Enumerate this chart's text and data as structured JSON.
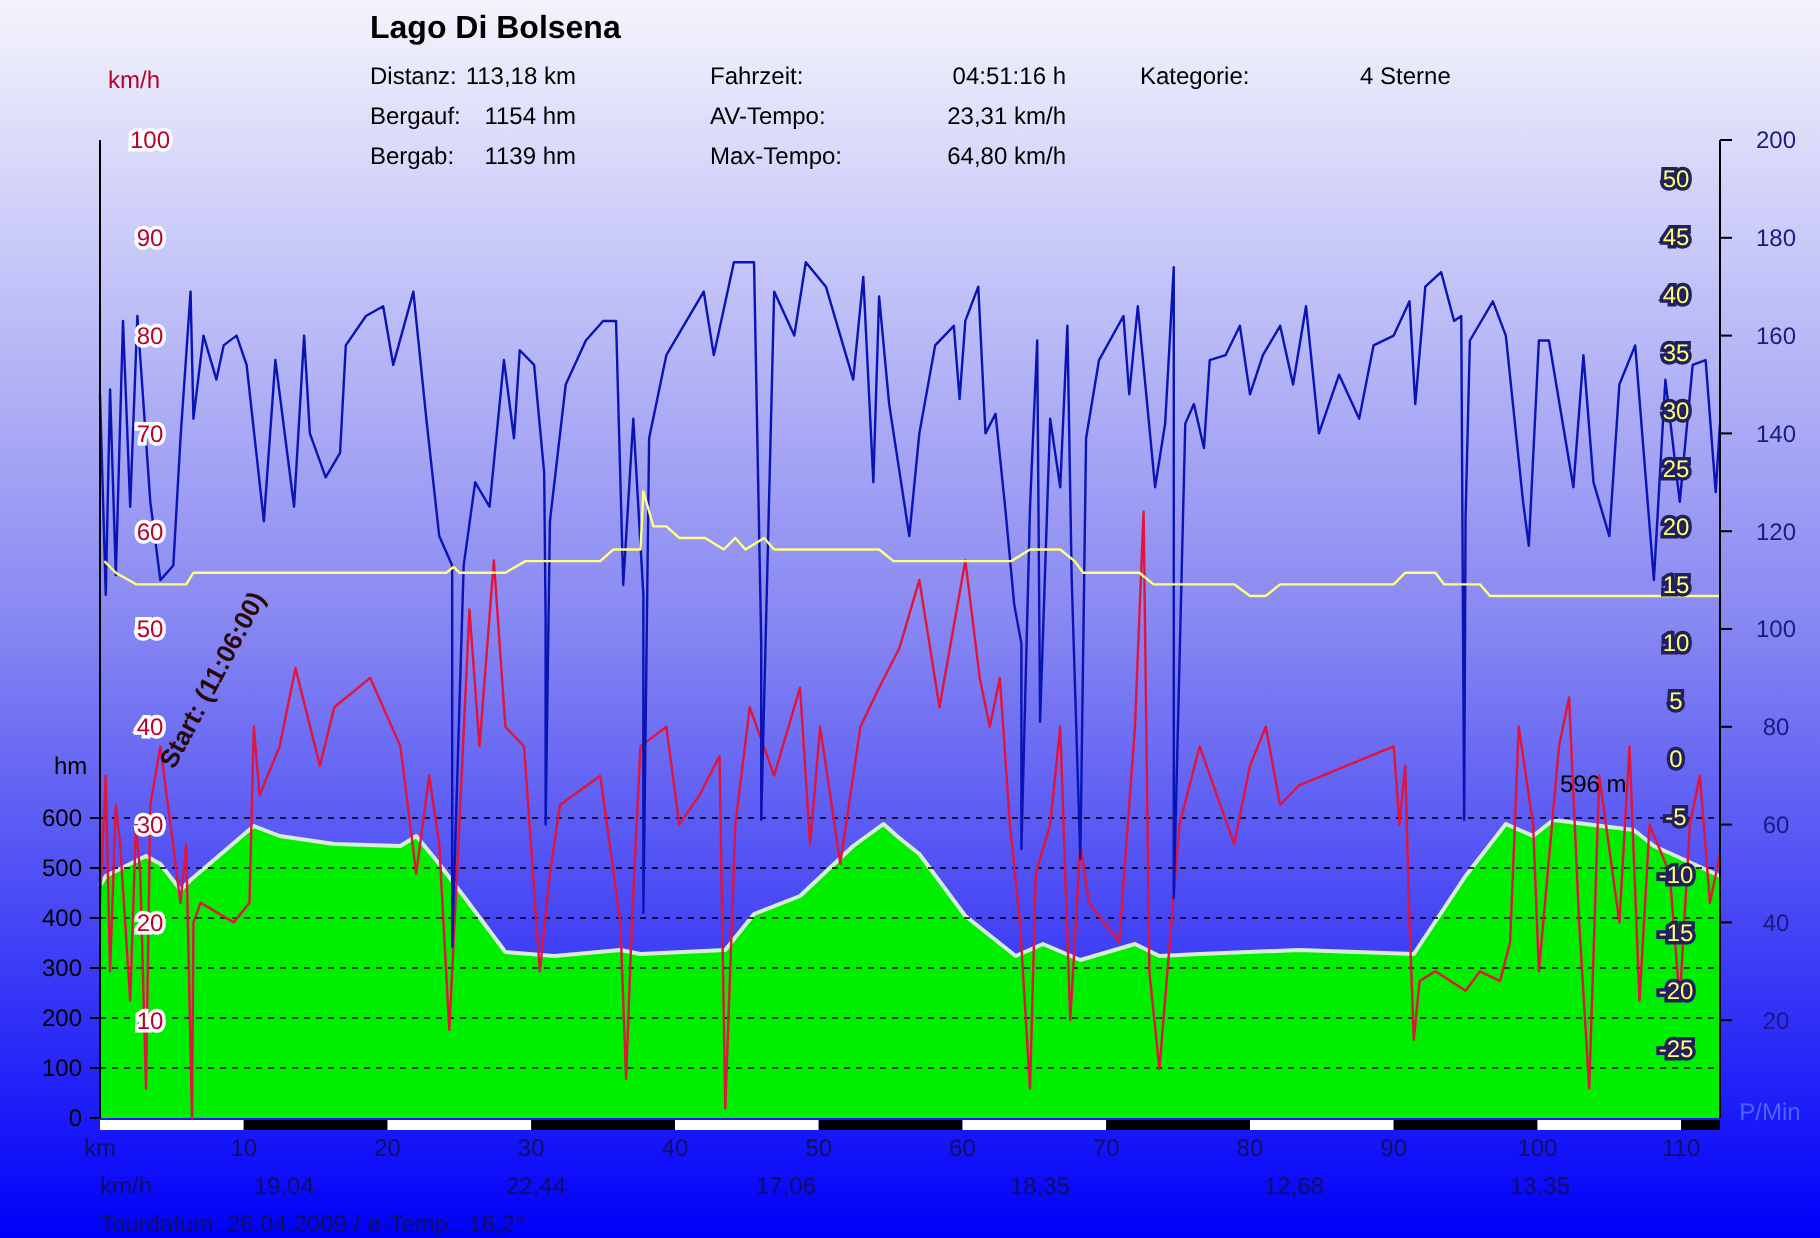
{
  "chart_data": [
    {
      "type": "line",
      "title": "Lago Di Bolsena",
      "xlim": [
        0,
        112.7
      ],
      "xticks": [
        {
          "value": 0,
          "label": "km"
        },
        10,
        20,
        30,
        40,
        50,
        60,
        70,
        80,
        90,
        100,
        110
      ],
      "ylabel": "hm",
      "ylim": [
        0,
        1956
      ],
      "yticks": [
        0,
        100,
        200,
        300,
        400,
        500,
        600
      ],
      "y2label": "km/h",
      "y2lim": [
        0,
        100
      ],
      "y2ticks": [
        10,
        20,
        30,
        40,
        50,
        60,
        70,
        80,
        90,
        100
      ],
      "y3label": "P/Min",
      "y3lim": [
        0,
        200
      ],
      "y3ticks": [
        20,
        40,
        60,
        80,
        100,
        120,
        140,
        160,
        180,
        200
      ],
      "grid": "y",
      "line_style": "solid",
      "series": [
        {
          "type": "area",
          "color": "#00ee00",
          "x": [
            0,
            0.4,
            3.2,
            4.2,
            5.6,
            6.3,
            10.7,
            12.5,
            16.3,
            20.9,
            22.0,
            23.6,
            25.5,
            28.2,
            31.6,
            36.2,
            37.6,
            43.5,
            45.5,
            48.7,
            52.4,
            54.5,
            55.6,
            57.0,
            60.2,
            63.7,
            65.6,
            68.2,
            72.0,
            73.7,
            76.5,
            83.4,
            91.4,
            95.0,
            97.8,
            99.7,
            101.1,
            106.7,
            108.1,
            112.7
          ],
          "values": [
            464,
            484,
            524,
            508,
            456,
            476,
            584,
            564,
            548,
            544,
            564,
            508,
            436,
            332,
            324,
            336,
            328,
            336,
            408,
            444,
            544,
            588,
            560,
            528,
            404,
            324,
            348,
            316,
            348,
            324,
            328,
            336,
            328,
            484,
            588,
            564,
            596,
            576,
            544,
            484
          ]
        },
        {
          "axis": "y2",
          "color": "#e0143c",
          "x": [
            0,
            0.4,
            0.7,
            1.1,
            1.4,
            2.1,
            2.5,
            2.8,
            3.2,
            3.5,
            4.2,
            5.6,
            6.0,
            6.4,
            6.5,
            7.0,
            9.3,
            10.4,
            10.7,
            11.1,
            12.5,
            13.6,
            15.3,
            16.3,
            18.8,
            20.9,
            22.0,
            22.9,
            23.6,
            24.3,
            25.0,
            25.7,
            26.4,
            27.4,
            28.2,
            29.5,
            30.6,
            31.3,
            32.0,
            34.8,
            36.2,
            36.6,
            37.0,
            37.6,
            39.4,
            40.3,
            41.7,
            43.1,
            43.5,
            44.2,
            45.2,
            46.9,
            48.7,
            49.4,
            50.1,
            51.5,
            52.9,
            54.2,
            55.6,
            57.0,
            58.4,
            60.2,
            61.2,
            61.9,
            62.6,
            63.3,
            64.0,
            64.7,
            65.1,
            66.1,
            66.8,
            67.5,
            68.2,
            68.8,
            70.9,
            72.0,
            72.6,
            73.0,
            73.7,
            75.1,
            76.5,
            78.9,
            80.0,
            81.1,
            82.1,
            83.4,
            90.0,
            90.4,
            90.8,
            91.1,
            91.4,
            91.8,
            92.9,
            95.0,
            96.0,
            97.4,
            98.1,
            98.7,
            99.7,
            100.1,
            101.5,
            102.2,
            102.9,
            103.6,
            104.3,
            105.7,
            106.4,
            107.1,
            107.8,
            109.2,
            109.9,
            110.6,
            111.3,
            112.0,
            112.7
          ],
          "values": [
            22,
            35,
            15,
            32,
            28,
            12,
            30,
            25,
            3,
            32,
            38,
            22,
            28,
            0,
            20,
            22,
            20,
            22,
            40,
            33,
            38,
            46,
            36,
            42,
            45,
            38,
            25,
            35,
            28,
            9,
            30,
            52,
            38,
            57,
            40,
            38,
            15,
            25,
            32,
            35,
            20,
            4,
            20,
            38,
            40,
            30,
            33,
            37,
            1,
            30,
            42,
            35,
            44,
            28,
            40,
            26,
            40,
            44,
            48,
            55,
            42,
            57,
            45,
            40,
            45,
            30,
            20,
            3,
            25,
            30,
            40,
            10,
            28,
            22,
            18,
            40,
            62,
            15,
            5,
            30,
            38,
            28,
            36,
            40,
            32,
            34,
            38,
            30,
            36,
            20,
            8,
            14,
            15,
            13,
            15,
            14,
            18,
            40,
            30,
            15,
            38,
            43,
            20,
            3,
            35,
            20,
            38,
            12,
            30,
            25,
            12,
            30,
            35,
            22,
            27
          ]
        },
        {
          "axis": "y3",
          "color": "#0a14b4",
          "x": [
            0,
            0.4,
            0.7,
            1.1,
            1.6,
            2.1,
            2.6,
            3.5,
            4.2,
            5.1,
            5.6,
            6.3,
            6.5,
            7.2,
            8.1,
            8.6,
            9.5,
            10.2,
            11.4,
            12.2,
            13.5,
            14.2,
            14.6,
            15.7,
            16.7,
            17.1,
            18.5,
            19.7,
            20.4,
            21.8,
            22.7,
            23.6,
            24.5,
            24.5,
            25.3,
            26.1,
            27.1,
            28.1,
            28.8,
            29.2,
            30.2,
            30.9,
            31.0,
            31.0,
            31.3,
            32.4,
            33.8,
            35.0,
            35.9,
            36.4,
            37.1,
            37.8,
            37.8,
            38.2,
            39.4,
            40.8,
            42.0,
            42.7,
            44.1,
            45.5,
            46.0,
            46.0,
            46.9,
            48.3,
            49.1,
            50.5,
            52.4,
            53.1,
            53.8,
            54.2,
            54.9,
            56.3,
            57.0,
            58.1,
            59.4,
            59.8,
            60.2,
            61.1,
            61.6,
            62.3,
            63.0,
            63.6,
            64.1,
            64.1,
            64.7,
            65.2,
            65.4,
            66.1,
            66.8,
            67.3,
            67.6,
            68.2,
            68.6,
            69.5,
            71.2,
            71.6,
            72.2,
            73.4,
            74.1,
            74.7,
            74.7,
            75.5,
            76.1,
            76.8,
            77.2,
            78.3,
            79.3,
            80.0,
            80.9,
            82.1,
            83.0,
            83.9,
            84.8,
            86.2,
            87.6,
            88.6,
            90.0,
            91.1,
            91.5,
            92.2,
            93.3,
            94.2,
            94.7,
            94.9,
            95.0,
            95.3,
            96.9,
            97.8,
            99.0,
            99.4,
            100.1,
            100.8,
            102.5,
            103.2,
            103.9,
            105.0,
            105.7,
            106.8,
            108.1,
            108.9,
            109.9,
            110.8,
            111.7,
            112.4,
            112.7
          ],
          "values": [
            148,
            107,
            149,
            111,
            163,
            125,
            164,
            126,
            110,
            113,
            139,
            169,
            143,
            160,
            151,
            158,
            160,
            154,
            122,
            155,
            125,
            160,
            140,
            131,
            136,
            158,
            164,
            166,
            154,
            169,
            143,
            119,
            113,
            35,
            113,
            130,
            125,
            155,
            139,
            157,
            154,
            132,
            102,
            60,
            122,
            150,
            159,
            163,
            163,
            109,
            143,
            107,
            42,
            139,
            156,
            163,
            169,
            156,
            175,
            175,
            97,
            61,
            169,
            160,
            175,
            170,
            151,
            172,
            130,
            168,
            146,
            119,
            140,
            158,
            162,
            147,
            163,
            170,
            140,
            144,
            124,
            105,
            97,
            55,
            125,
            159,
            81,
            143,
            129,
            162,
            110,
            53,
            139,
            155,
            164,
            148,
            166,
            129,
            142,
            174,
            45,
            142,
            146,
            137,
            155,
            156,
            162,
            148,
            156,
            162,
            150,
            166,
            140,
            152,
            143,
            158,
            160,
            167,
            146,
            170,
            173,
            163,
            164,
            61,
            123,
            159,
            167,
            160,
            126,
            117,
            159,
            159,
            129,
            156,
            130,
            119,
            150,
            158,
            110,
            151,
            126,
            154,
            155,
            128,
            142
          ]
        }
      ],
      "annotations": [
        "Distanz:",
        "113,18 km",
        "Bergauf:",
        "1154 hm",
        "Bergab:",
        "1139 hm",
        "Fahrzeit:",
        "04:51:16 h",
        "AV-Tempo:",
        "23,31 km/h",
        "Max-Tempo:",
        "64,80 km/h",
        "Kategorie:",
        "4 Sterne",
        "Start: (11:06:00)",
        {
          "text": "596 m",
          "x": 101.1,
          "y": 596
        },
        "km/h",
        "19,04",
        "22,44",
        "17,06",
        "18,35",
        "12,68",
        "13,35",
        "Tourdatum: 26.04.2009  /  ø-Temp.: 16,2°"
      ]
    },
    {
      "type": "line",
      "xlim": [
        0,
        112.7
      ],
      "ylim": [
        -31,
        53.3
      ],
      "yticks": [
        -25,
        -20,
        -15,
        -10,
        -5,
        0,
        5,
        10,
        15,
        20,
        25,
        30,
        35,
        40,
        45,
        50
      ],
      "tick_labels": "y",
      "series": [
        {
          "color": "#ffff80",
          "x": [
            0.3,
            1.1,
            2.5,
            6.0,
            6.5,
            24.1,
            24.6,
            25.0,
            28.2,
            29.6,
            34.8,
            35.7,
            37.6,
            37.8,
            38.5,
            39.4,
            40.3,
            42.1,
            43.4,
            44.2,
            44.9,
            46.2,
            46.9,
            54.2,
            55.2,
            57.0,
            62.6,
            63.4,
            64.7,
            66.8,
            67.8,
            68.4,
            72.3,
            73.3,
            74.7,
            78.9,
            80.0,
            81.1,
            82.1,
            90.0,
            90.8,
            92.9,
            93.5,
            96.0,
            96.7,
            112.7
          ],
          "values": [
            17,
            16,
            15,
            15,
            16,
            16,
            16.5,
            16,
            16,
            17,
            17,
            18,
            18,
            23,
            20,
            20,
            19,
            19,
            18,
            19,
            18,
            19,
            18,
            18,
            17,
            17,
            17,
            17,
            18,
            18,
            17,
            16,
            16,
            15,
            15,
            15,
            14,
            14,
            15,
            15,
            16,
            16,
            15,
            15,
            14,
            14
          ]
        }
      ]
    }
  ]
}
